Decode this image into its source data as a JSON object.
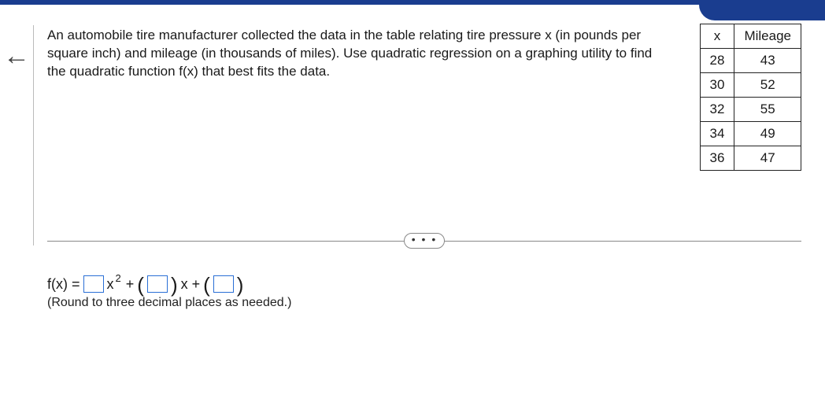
{
  "problem": {
    "text": "An automobile tire manufacturer collected the data in the table relating tire pressure x (in pounds per square inch) and mileage (in thousands of miles). Use quadratic regression on a graphing utility to find the quadratic function f(x) that best fits the data."
  },
  "table": {
    "headers": {
      "col1": "x",
      "col2": "Mileage"
    },
    "rows": [
      {
        "x": "28",
        "m": "43"
      },
      {
        "x": "30",
        "m": "52"
      },
      {
        "x": "32",
        "m": "55"
      },
      {
        "x": "34",
        "m": "49"
      },
      {
        "x": "36",
        "m": "47"
      }
    ]
  },
  "formula": {
    "prefix": "f(x) =",
    "term1_var": "x",
    "term1_exp": "2",
    "plus1": "+",
    "term2_var": "x +",
    "hint": "(Round to three decimal places as needed.)"
  },
  "divider_dots": "• • •",
  "back_arrow": "←",
  "colors": {
    "topbar": "#1a3d8f",
    "input_border": "#2a6fd6",
    "divider": "#888888",
    "text": "#1a1a1a"
  }
}
